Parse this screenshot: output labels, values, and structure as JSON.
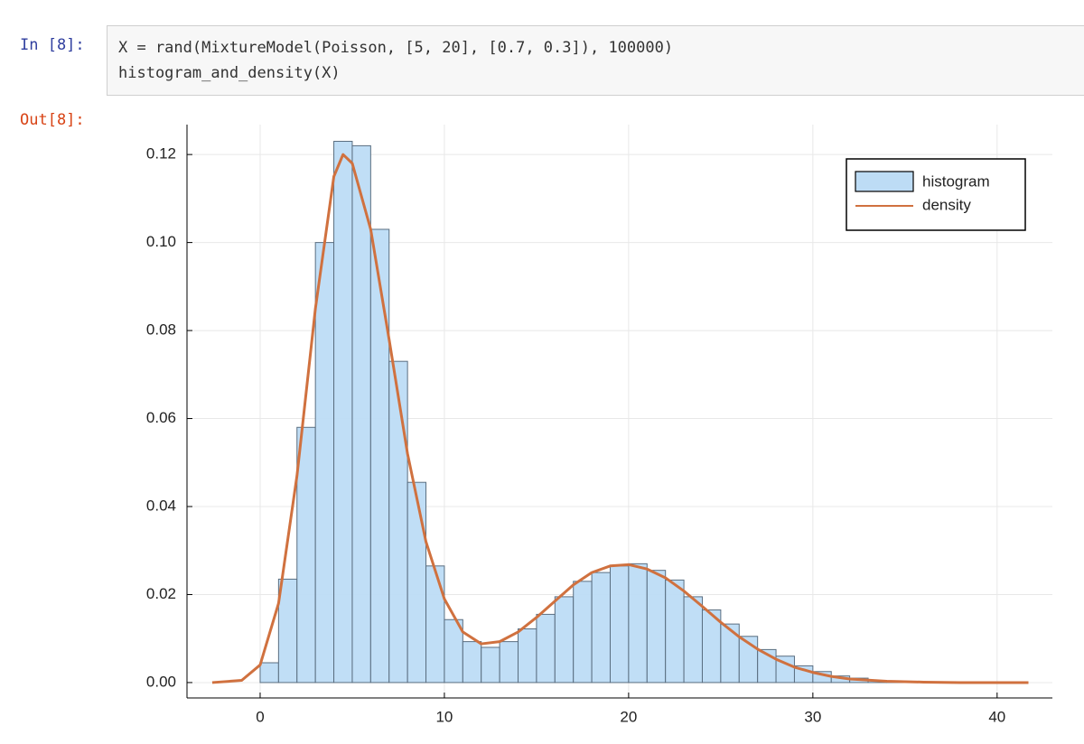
{
  "cell": {
    "prompt_in": "In [8]:",
    "code": [
      "X = rand(MixtureModel(Poisson, [5, 20], [0.7, 0.3]), 100000)",
      "histogram_and_density(X)"
    ],
    "prompt_out": "Out[8]:"
  },
  "chart_data": {
    "type": "histogram",
    "xlim": [
      -3.97,
      43
    ],
    "ylim": [
      -0.0035,
      0.1268
    ],
    "xticks": [
      0,
      10,
      20,
      30,
      40
    ],
    "yticks": [
      {
        "value": 0,
        "label": "0.00"
      },
      {
        "value": 0.02,
        "label": "0.02"
      },
      {
        "value": 0.04,
        "label": "0.04"
      },
      {
        "value": 0.06,
        "label": "0.06"
      },
      {
        "value": 0.08,
        "label": "0.08"
      },
      {
        "value": 0.1,
        "label": "0.10"
      },
      {
        "value": 0.12,
        "label": "0.12"
      }
    ],
    "grid": true,
    "legend": "top-right",
    "series": [
      {
        "name": "histogram",
        "color": "#bddcf5",
        "bins": [
          0,
          1,
          2,
          3,
          4,
          5,
          6,
          7,
          8,
          9,
          10,
          11,
          12,
          13,
          14,
          15,
          16,
          17,
          18,
          19,
          20,
          21,
          22,
          23,
          24,
          25,
          26,
          27,
          28,
          29,
          30,
          31,
          32,
          33,
          34,
          35,
          36,
          37
        ],
        "values": [
          0.0045,
          0.0235,
          0.058,
          0.1,
          0.123,
          0.122,
          0.103,
          0.073,
          0.0455,
          0.0265,
          0.0143,
          0.0093,
          0.008,
          0.0093,
          0.0122,
          0.0155,
          0.0195,
          0.023,
          0.025,
          0.0265,
          0.027,
          0.0255,
          0.0233,
          0.0195,
          0.0165,
          0.0133,
          0.0105,
          0.0075,
          0.006,
          0.0038,
          0.0025,
          0.0015,
          0.001,
          0.0005,
          0.0003,
          0.0002,
          0.0001
        ]
      },
      {
        "name": "density",
        "color": "#d0713f",
        "x": [
          -2.6,
          -1,
          0,
          1,
          2,
          3,
          4,
          4.5,
          5,
          6,
          7,
          8,
          9,
          10,
          11,
          12,
          13,
          14,
          15,
          16,
          17,
          18,
          19,
          20,
          21,
          22,
          23,
          24,
          25,
          26,
          27,
          28,
          29,
          30,
          31,
          32,
          34,
          36,
          38,
          41.7
        ],
        "values": [
          0,
          0.0005,
          0.004,
          0.018,
          0.047,
          0.085,
          0.115,
          0.12,
          0.118,
          0.103,
          0.078,
          0.052,
          0.032,
          0.019,
          0.0115,
          0.0088,
          0.0093,
          0.0115,
          0.0148,
          0.0185,
          0.0222,
          0.025,
          0.0265,
          0.0268,
          0.0258,
          0.0238,
          0.0208,
          0.0173,
          0.0137,
          0.0104,
          0.0076,
          0.0053,
          0.0035,
          0.0023,
          0.0014,
          0.0008,
          0.0003,
          0.0001,
          0,
          0
        ]
      }
    ]
  }
}
